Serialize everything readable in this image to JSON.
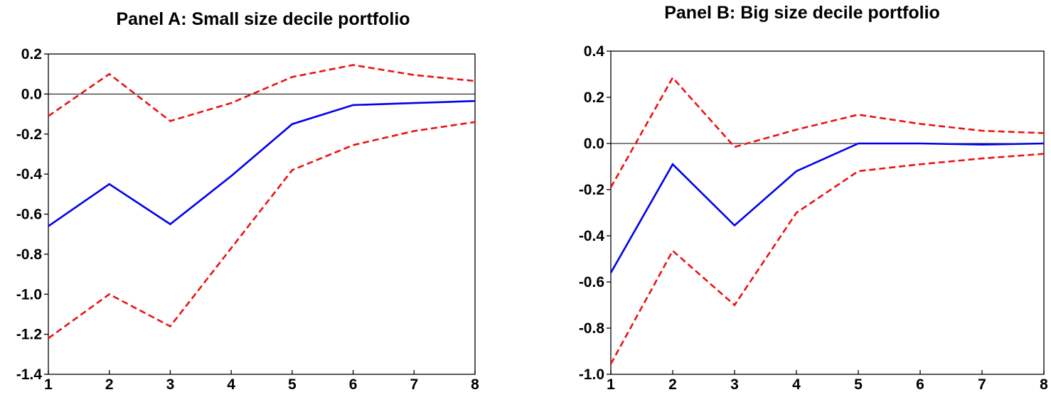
{
  "chart_data": [
    {
      "type": "line",
      "title": "Panel A: Small size decile portfolio",
      "xlabel": "",
      "ylabel": "",
      "x": [
        1,
        2,
        3,
        4,
        5,
        6,
        7,
        8
      ],
      "xlim": [
        1,
        8
      ],
      "ylim": [
        -1.4,
        0.2
      ],
      "yticks": [
        "0.2",
        "0.0",
        "-0.2",
        "-0.4",
        "-0.6",
        "-0.8",
        "-1.0",
        "-1.2",
        "-1.4"
      ],
      "xticks": [
        "1",
        "2",
        "3",
        "4",
        "5",
        "6",
        "7",
        "8"
      ],
      "zero_line": true,
      "grid": false,
      "series": [
        {
          "style": "solid",
          "color": "#0000ee",
          "values": [
            -0.66,
            -0.45,
            -0.65,
            -0.41,
            -0.15,
            -0.055,
            -0.045,
            -0.035
          ]
        },
        {
          "style": "dashed",
          "color": "#ee1111",
          "values": [
            -0.11,
            0.1,
            -0.135,
            -0.045,
            0.085,
            0.145,
            0.095,
            0.065
          ]
        },
        {
          "style": "dashed",
          "color": "#ee1111",
          "values": [
            -1.22,
            -1.0,
            -1.16,
            -0.77,
            -0.38,
            -0.255,
            -0.185,
            -0.14
          ]
        }
      ]
    },
    {
      "type": "line",
      "title": "Panel B: Big size decile portfolio",
      "xlabel": "",
      "ylabel": "",
      "x": [
        1,
        2,
        3,
        4,
        5,
        6,
        7,
        8
      ],
      "xlim": [
        1,
        8
      ],
      "ylim": [
        -1.0,
        0.4
      ],
      "yticks": [
        "0.4",
        "0.2",
        "0.0",
        "-0.2",
        "-0.4",
        "-0.6",
        "-0.8",
        "-1.0"
      ],
      "xticks": [
        "1",
        "2",
        "3",
        "4",
        "5",
        "6",
        "7",
        "8"
      ],
      "zero_line": true,
      "grid": false,
      "series": [
        {
          "style": "solid",
          "color": "#0000ee",
          "values": [
            -0.56,
            -0.09,
            -0.355,
            -0.12,
            0.0,
            0.0,
            -0.005,
            0.0
          ]
        },
        {
          "style": "dashed",
          "color": "#ee1111",
          "values": [
            -0.19,
            0.285,
            -0.015,
            0.06,
            0.125,
            0.085,
            0.055,
            0.045
          ]
        },
        {
          "style": "dashed",
          "color": "#ee1111",
          "values": [
            -0.955,
            -0.465,
            -0.7,
            -0.3,
            -0.12,
            -0.09,
            -0.065,
            -0.045
          ]
        }
      ]
    }
  ]
}
